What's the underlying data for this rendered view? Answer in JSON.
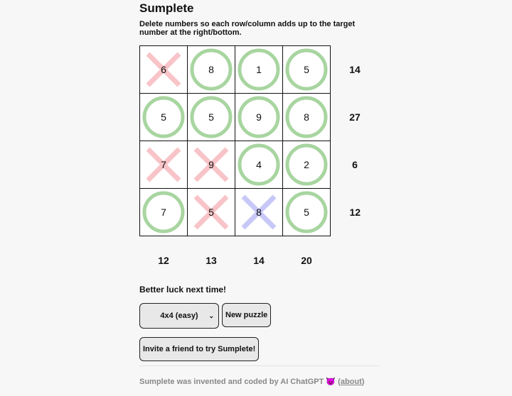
{
  "title": "Sumplete",
  "description": "Delete numbers so each row/column adds up to the target number at the right/bottom.",
  "grid": [
    [
      {
        "value": "6",
        "state": "deleted"
      },
      {
        "value": "8",
        "state": "kept"
      },
      {
        "value": "1",
        "state": "kept"
      },
      {
        "value": "5",
        "state": "kept"
      }
    ],
    [
      {
        "value": "5",
        "state": "kept"
      },
      {
        "value": "5",
        "state": "kept"
      },
      {
        "value": "9",
        "state": "kept"
      },
      {
        "value": "8",
        "state": "kept"
      }
    ],
    [
      {
        "value": "7",
        "state": "deleted"
      },
      {
        "value": "9",
        "state": "deleted"
      },
      {
        "value": "4",
        "state": "kept"
      },
      {
        "value": "2",
        "state": "kept"
      }
    ],
    [
      {
        "value": "7",
        "state": "kept"
      },
      {
        "value": "5",
        "state": "deleted"
      },
      {
        "value": "8",
        "state": "revealed-deleted"
      },
      {
        "value": "5",
        "state": "kept"
      }
    ]
  ],
  "row_targets": [
    "14",
    "27",
    "6",
    "12"
  ],
  "col_targets": [
    "12",
    "13",
    "14",
    "20"
  ],
  "colors": {
    "kept": "#a8d5a0",
    "deleted": "#f8c4c8",
    "revealed-deleted": "#c8c8f8"
  },
  "status": "Better luck next time!",
  "controls": {
    "size_select": "4x4 (easy)",
    "new_puzzle": "New puzzle",
    "invite": "Invite a friend to try Sumplete!"
  },
  "footer": {
    "text": "Sumplete was invented and coded by AI ChatGPT 😈 (",
    "link": "about",
    "close": ")"
  }
}
